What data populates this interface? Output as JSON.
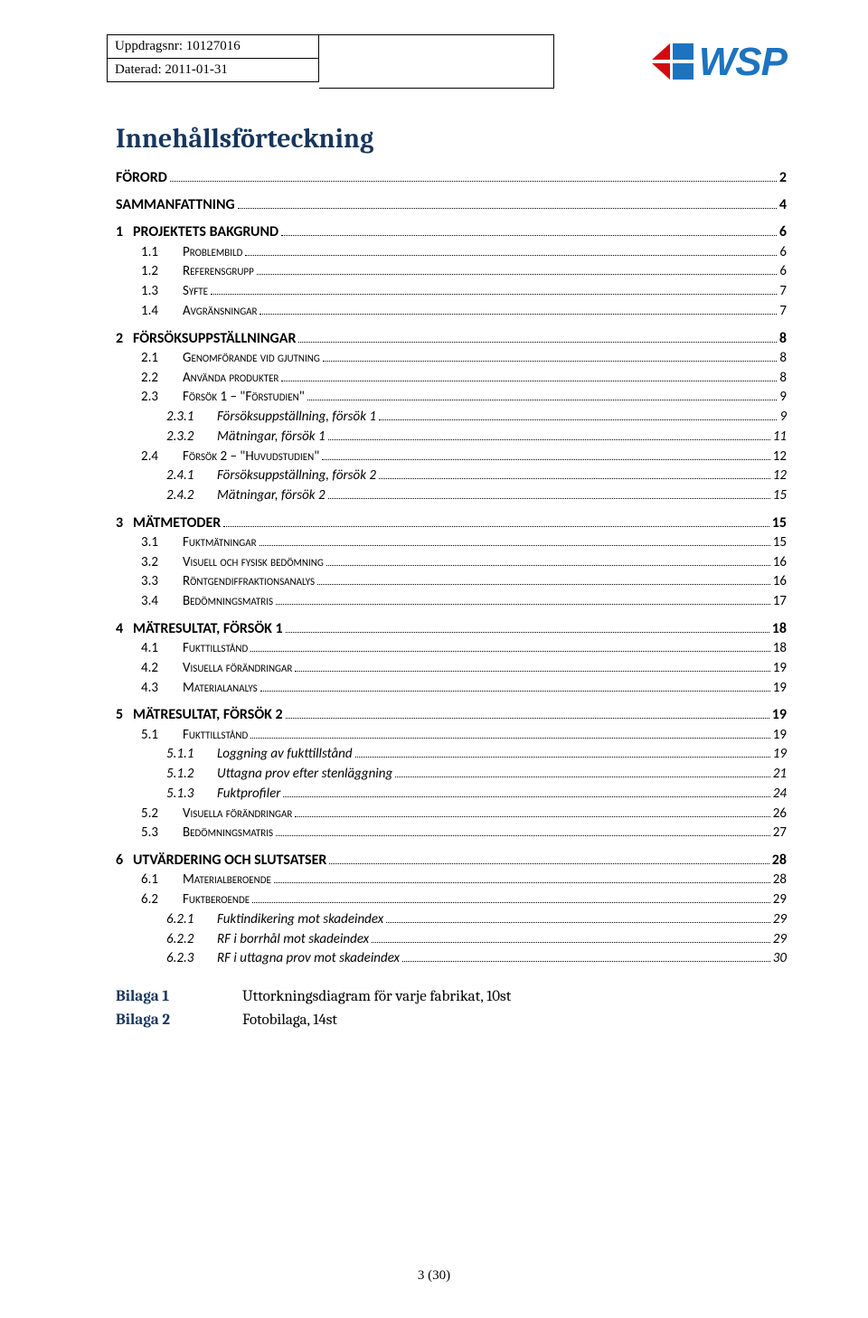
{
  "header": {
    "uppdragsnr_label": "Uppdragsnr: 10127016",
    "daterad_label": "Daterad: 2011-01-31",
    "logo_text": "WSP"
  },
  "title": "Innehållsförteckning",
  "toc": [
    {
      "level": 0,
      "num": "",
      "text": "FÖRORD",
      "page": "2"
    },
    {
      "level": 0,
      "num": "",
      "text": "SAMMANFATTNING",
      "page": "4"
    },
    {
      "level": 0,
      "num": "1",
      "text": "PROJEKTETS BAKGRUND",
      "page": "6"
    },
    {
      "level": 1,
      "num": "1.1",
      "text": "Problembild",
      "page": "6"
    },
    {
      "level": 1,
      "num": "1.2",
      "text": "Referensgrupp",
      "page": "6"
    },
    {
      "level": 1,
      "num": "1.3",
      "text": "Syfte",
      "page": "7"
    },
    {
      "level": 1,
      "num": "1.4",
      "text": "Avgränsningar",
      "page": "7"
    },
    {
      "level": 0,
      "num": "2",
      "text": "FÖRSÖKSUPPSTÄLLNINGAR",
      "page": "8"
    },
    {
      "level": 1,
      "num": "2.1",
      "text": "Genomförande vid gjutning",
      "page": "8"
    },
    {
      "level": 1,
      "num": "2.2",
      "text": "Använda produkter",
      "page": "8"
    },
    {
      "level": 1,
      "num": "2.3",
      "text": "Försök 1 – \"Förstudien\"",
      "page": "9"
    },
    {
      "level": 2,
      "num": "2.3.1",
      "text": "Försöksuppställning, försök 1",
      "page": "9"
    },
    {
      "level": 2,
      "num": "2.3.2",
      "text": "Mätningar, försök 1",
      "page": "11"
    },
    {
      "level": 1,
      "num": "2.4",
      "text": "Försök 2 – \"Huvudstudien\"",
      "page": "12"
    },
    {
      "level": 2,
      "num": "2.4.1",
      "text": "Försöksuppställning, försök 2",
      "page": "12"
    },
    {
      "level": 2,
      "num": "2.4.2",
      "text": "Mätningar, försök 2",
      "page": "15"
    },
    {
      "level": 0,
      "num": "3",
      "text": "MÄTMETODER",
      "page": "15"
    },
    {
      "level": 1,
      "num": "3.1",
      "text": "Fuktmätningar",
      "page": "15"
    },
    {
      "level": 1,
      "num": "3.2",
      "text": "Visuell och fysisk bedömning",
      "page": "16"
    },
    {
      "level": 1,
      "num": "3.3",
      "text": "Röntgendiffraktionsanalys",
      "page": "16"
    },
    {
      "level": 1,
      "num": "3.4",
      "text": "Bedömningsmatris",
      "page": "17"
    },
    {
      "level": 0,
      "num": "4",
      "text": "MÄTRESULTAT, FÖRSÖK 1",
      "page": "18"
    },
    {
      "level": 1,
      "num": "4.1",
      "text": "Fukttillstånd",
      "page": "18"
    },
    {
      "level": 1,
      "num": "4.2",
      "text": "Visuella förändringar",
      "page": "19"
    },
    {
      "level": 1,
      "num": "4.3",
      "text": "Materialanalys",
      "page": "19"
    },
    {
      "level": 0,
      "num": "5",
      "text": "MÄTRESULTAT, FÖRSÖK 2",
      "page": "19"
    },
    {
      "level": 1,
      "num": "5.1",
      "text": "Fukttillstånd",
      "page": "19"
    },
    {
      "level": 2,
      "num": "5.1.1",
      "text": "Loggning av fukttillstånd",
      "page": "19"
    },
    {
      "level": 2,
      "num": "5.1.2",
      "text": "Uttagna prov efter stenläggning",
      "page": "21"
    },
    {
      "level": 2,
      "num": "5.1.3",
      "text": "Fuktprofiler",
      "page": "24"
    },
    {
      "level": 1,
      "num": "5.2",
      "text": "Visuella förändringar",
      "page": "26"
    },
    {
      "level": 1,
      "num": "5.3",
      "text": "Bedömningsmatris",
      "page": "27"
    },
    {
      "level": 0,
      "num": "6",
      "text": "UTVÄRDERING OCH SLUTSATSER",
      "page": "28"
    },
    {
      "level": 1,
      "num": "6.1",
      "text": "Materialberoende",
      "page": "28"
    },
    {
      "level": 1,
      "num": "6.2",
      "text": "Fuktberoende",
      "page": "29"
    },
    {
      "level": 2,
      "num": "6.2.1",
      "text": "Fuktindikering mot skadeindex",
      "page": "29"
    },
    {
      "level": 2,
      "num": "6.2.2",
      "text": "RF i borrhål mot skadeindex",
      "page": "29"
    },
    {
      "level": 2,
      "num": "6.2.3",
      "text": "RF i uttagna prov mot skadeindex",
      "page": "30"
    }
  ],
  "appendix": [
    {
      "label": "Bilaga 1",
      "text": "Uttorkningsdiagram för varje fabrikat, 10st"
    },
    {
      "label": "Bilaga 2",
      "text": "Fotobilaga, 14st"
    }
  ],
  "footer": {
    "page": "3 (30)"
  },
  "colors": {
    "heading": "#17365d",
    "logo": "#1e73be",
    "logo_red": "#d10a11",
    "logo_blue_shape": "#1e73be"
  }
}
